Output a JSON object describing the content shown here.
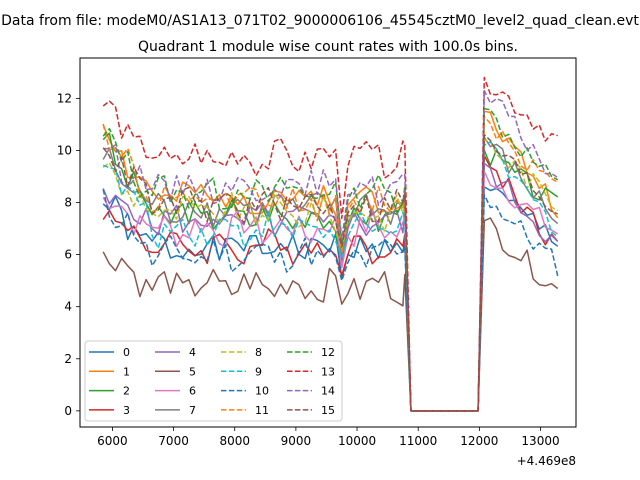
{
  "figure": {
    "suptitle": "Data from file: modeM0/AS1A13_071T02_9000006106_45545cztM0_level2_quad_clean.evt"
  },
  "chart_data": {
    "type": "line",
    "title": "Quadrant 1 module wise count rates with 100.0s bins.",
    "xlabel": "",
    "ylabel": "",
    "x_offset_label": "+4.469e8",
    "xlim": [
      5470,
      13580
    ],
    "ylim": [
      -0.62,
      13.55
    ],
    "x_ticks": [
      6000,
      7000,
      8000,
      9000,
      10000,
      11000,
      12000,
      13000
    ],
    "x_tick_labels": [
      "6000",
      "7000",
      "8000",
      "9000",
      "10000",
      "11000",
      "12000",
      "13000"
    ],
    "y_ticks": [
      0,
      2,
      4,
      6,
      8,
      10,
      12
    ],
    "y_tick_labels": [
      "0",
      "2",
      "4",
      "6",
      "8",
      "10",
      "12"
    ],
    "legend_position": "lower-left",
    "legend_columns": 4,
    "series_shape": {
      "segment_1": {
        "start": 5850,
        "step": 100,
        "points": 50
      },
      "drop": [
        10780,
        10880,
        10980
      ],
      "gap_zero": {
        "from": 10980,
        "to": 11980,
        "value": 0
      },
      "segment_2": {
        "start": 12080,
        "step": 100,
        "points": 13
      }
    },
    "series": [
      {
        "name": "0",
        "color": "#1f77b4",
        "dash": "solid",
        "base": 6.3,
        "start": 7.9,
        "dip": 5.1,
        "peak": 8.6,
        "end": 6.6
      },
      {
        "name": "1",
        "color": "#ff7f0e",
        "dash": "solid",
        "base": 8.2,
        "start": 10.9,
        "dip": 6.0,
        "peak": 11.5,
        "end": 7.8
      },
      {
        "name": "2",
        "color": "#2ca02c",
        "dash": "solid",
        "base": 7.5,
        "start": 10.5,
        "dip": 5.6,
        "peak": 10.0,
        "end": 7.8
      },
      {
        "name": "3",
        "color": "#d62728",
        "dash": "solid",
        "base": 6.3,
        "start": 7.8,
        "dip": 5.2,
        "peak": 9.8,
        "end": 6.2
      },
      {
        "name": "4",
        "color": "#9467bd",
        "dash": "solid",
        "base": 7.3,
        "start": 8.3,
        "dip": 5.7,
        "peak": 9.5,
        "end": 6.3
      },
      {
        "name": "5",
        "color": "#8c564b",
        "dash": "solid",
        "base": 4.8,
        "start": 6.1,
        "dip": 4.1,
        "peak": 7.3,
        "end": 4.6
      },
      {
        "name": "6",
        "color": "#e377c2",
        "dash": "solid",
        "base": 7.0,
        "start": 8.2,
        "dip": 5.5,
        "peak": 9.2,
        "end": 6.8
      },
      {
        "name": "7",
        "color": "#7f7f7f",
        "dash": "solid",
        "base": 7.8,
        "start": 9.6,
        "dip": 5.8,
        "peak": 10.5,
        "end": 7.3
      },
      {
        "name": "8",
        "color": "#bcbd22",
        "dash": "dashed",
        "base": 7.6,
        "start": 9.4,
        "dip": 6.2,
        "peak": 10.4,
        "end": 7.9
      },
      {
        "name": "9",
        "color": "#17becf",
        "dash": "dashed",
        "base": 7.0,
        "start": 9.8,
        "dip": 5.9,
        "peak": 10.2,
        "end": 7.0
      },
      {
        "name": "10",
        "color": "#1f77b4",
        "dash": "dashed",
        "base": 6.0,
        "start": 8.2,
        "dip": 5.0,
        "peak": 8.3,
        "end": 5.6
      },
      {
        "name": "11",
        "color": "#ff7f0e",
        "dash": "dashed",
        "base": 8.0,
        "start": 11.0,
        "dip": 6.1,
        "peak": 11.3,
        "end": 8.4
      },
      {
        "name": "12",
        "color": "#2ca02c",
        "dash": "dashed",
        "base": 8.4,
        "start": 10.6,
        "dip": 6.4,
        "peak": 11.6,
        "end": 8.6
      },
      {
        "name": "13",
        "color": "#d62728",
        "dash": "dashed",
        "base": 9.7,
        "start": 11.7,
        "dip": 7.4,
        "peak": 12.8,
        "end": 10.4
      },
      {
        "name": "14",
        "color": "#9467bd",
        "dash": "dashed",
        "base": 8.6,
        "start": 10.1,
        "dip": 6.6,
        "peak": 12.3,
        "end": 8.9
      },
      {
        "name": "15",
        "color": "#8c564b",
        "dash": "dashed",
        "base": 7.9,
        "start": 10.4,
        "dip": 6.3,
        "peak": 10.6,
        "end": 7.6
      }
    ]
  }
}
